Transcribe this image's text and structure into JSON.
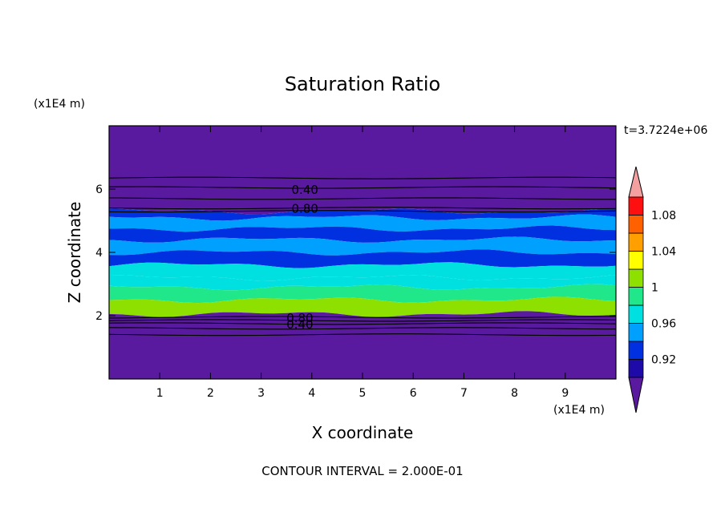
{
  "chart_data": {
    "type": "heatmap",
    "title": "Saturation Ratio",
    "xlabel": "X coordinate",
    "ylabel": "Z coordinate",
    "x_unit": "(x1E4 m)",
    "y_unit": "(x1E4 m)",
    "time_label": "t=3.7224e+06",
    "footer": "CONTOUR INTERVAL = 2.000E-01",
    "xlim": [
      0,
      10
    ],
    "ylim": [
      0,
      8
    ],
    "x_ticks": [
      "1",
      "2",
      "3",
      "4",
      "5",
      "6",
      "7",
      "8",
      "9"
    ],
    "y_ticks": [
      "2",
      "4",
      "6"
    ],
    "colorbar": {
      "levels": [
        0.9,
        0.92,
        0.94,
        0.96,
        0.98,
        1.0,
        1.02,
        1.04,
        1.06,
        1.08,
        1.1
      ],
      "tick_labels": [
        "0.92",
        "0.96",
        "1",
        "1.04",
        "1.08"
      ],
      "colors": [
        "#5a1aa0",
        "#1e0aa8",
        "#0030e0",
        "#00a0ff",
        "#00e0e0",
        "#20e88a",
        "#8ee000",
        "#ffff00",
        "#ffa000",
        "#ff6000",
        "#ff1010",
        "#f4a0a0"
      ],
      "extend": "both"
    },
    "bands": [
      {
        "z_bottom": 5.3,
        "z_top": 8.0,
        "value": 0.89,
        "note": "dry above"
      },
      {
        "z_bottom": 5.1,
        "z_top": 5.3,
        "value": 0.92
      },
      {
        "z_bottom": 4.75,
        "z_top": 5.1,
        "value": 0.95
      },
      {
        "z_bottom": 4.4,
        "z_top": 4.75,
        "value": 0.92
      },
      {
        "z_bottom": 4.0,
        "z_top": 4.4,
        "value": 0.94
      },
      {
        "z_bottom": 3.6,
        "z_top": 4.0,
        "value": 0.92
      },
      {
        "z_bottom": 3.2,
        "z_top": 3.6,
        "value": 0.96
      },
      {
        "z_bottom": 2.9,
        "z_top": 3.2,
        "value": 0.97
      },
      {
        "z_bottom": 2.5,
        "z_top": 2.9,
        "value": 0.99
      },
      {
        "z_bottom": 2.05,
        "z_top": 2.5,
        "value": 1.01
      },
      {
        "z_bottom": 0.0,
        "z_top": 2.05,
        "value": 0.89
      }
    ],
    "contours": [
      {
        "label": "0.40",
        "z": 6.0,
        "label_x": 3.6
      },
      {
        "label": "0.80",
        "z": 5.4,
        "label_x": 3.6
      },
      {
        "label": "0.80",
        "z": 1.95,
        "label_x": 3.5
      },
      {
        "label": "0.40",
        "z": 1.75,
        "label_x": 3.5
      }
    ],
    "contour_lines_z": [
      6.35,
      6.05,
      5.7,
      5.4,
      5.3,
      1.95,
      1.85,
      1.75,
      1.6,
      1.4
    ]
  }
}
